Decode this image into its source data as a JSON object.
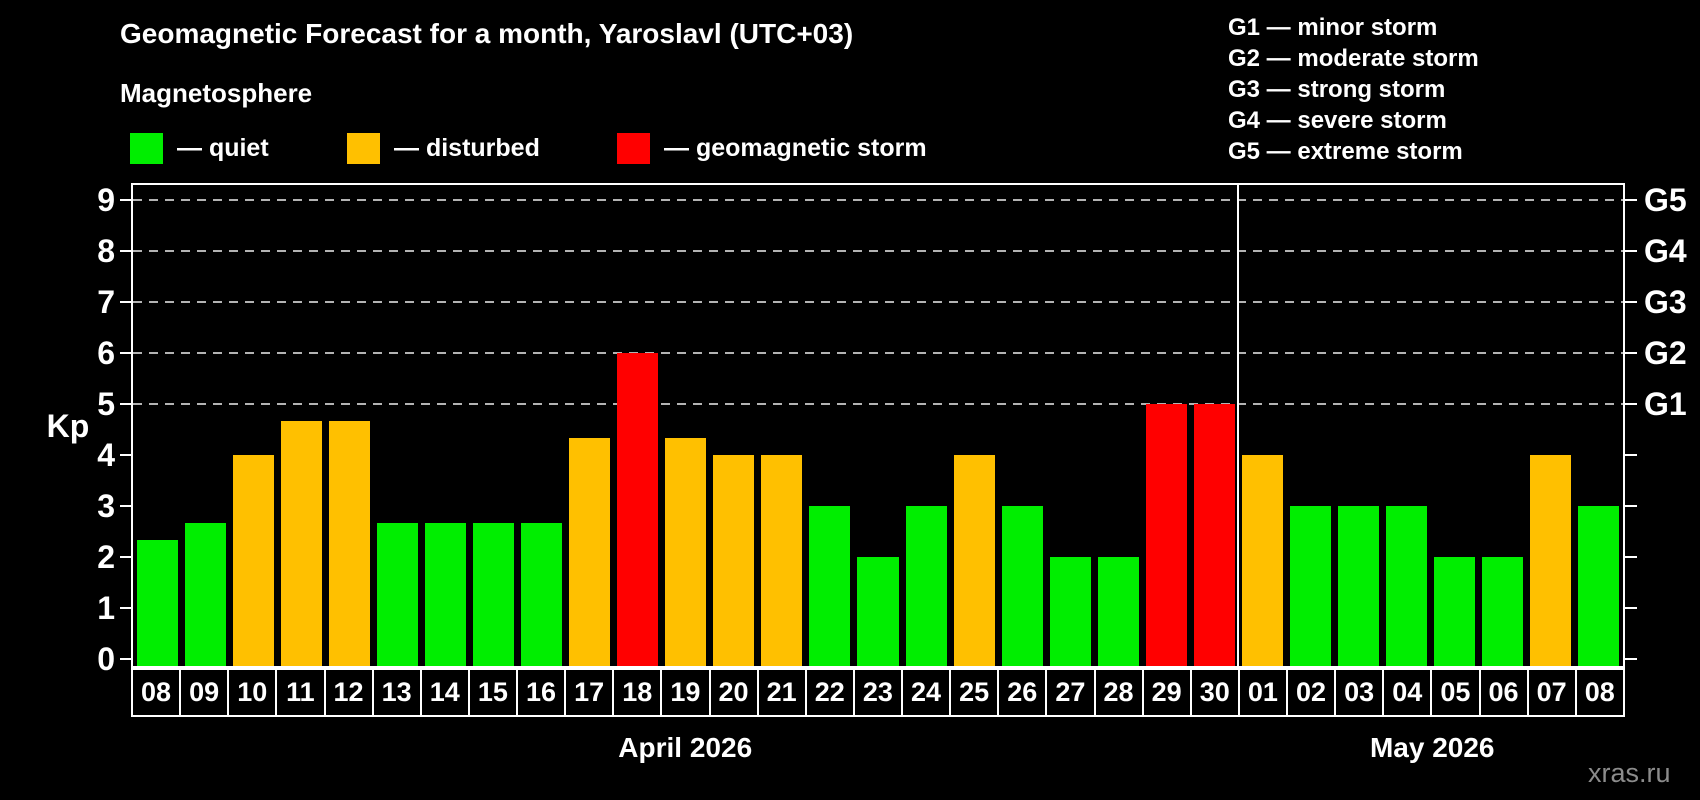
{
  "title": "Geomagnetic Forecast for a month, Yaroslavl (UTC+03)",
  "subtitle": "Magnetosphere",
  "legend": {
    "items": [
      {
        "label": "— quiet",
        "status": "quiet",
        "color": "#00ee00"
      },
      {
        "label": "— disturbed",
        "status": "disturbed",
        "color": "#ffc000"
      },
      {
        "label": "— geomagnetic storm",
        "status": "storm",
        "color": "#ff0000"
      }
    ]
  },
  "g_scale_legend": [
    "G1 — minor storm",
    "G2 — moderate storm",
    "G3 — strong storm",
    "G4 — severe storm",
    "G5 — extreme storm"
  ],
  "watermark": "xras.ru",
  "chart_data": {
    "type": "bar",
    "ylabel": "Kp",
    "ylim": [
      0,
      9.4
    ],
    "yticks": [
      0,
      1,
      2,
      3,
      4,
      5,
      6,
      7,
      8,
      9
    ],
    "gridlines_at": [
      5,
      6,
      7,
      8,
      9
    ],
    "grid": "dashed horizontal at storm levels only",
    "legend_position": "top-left",
    "right_axis_labels": [
      {
        "value": 5,
        "label": "G1"
      },
      {
        "value": 6,
        "label": "G2"
      },
      {
        "value": 7,
        "label": "G3"
      },
      {
        "value": 8,
        "label": "G4"
      },
      {
        "value": 9,
        "label": "G5"
      }
    ],
    "months": [
      {
        "label": "April 2026",
        "days": 23
      },
      {
        "label": "May 2026",
        "days": 8
      }
    ],
    "categories": [
      "08",
      "09",
      "10",
      "11",
      "12",
      "13",
      "14",
      "15",
      "16",
      "17",
      "18",
      "19",
      "20",
      "21",
      "22",
      "23",
      "24",
      "25",
      "26",
      "27",
      "28",
      "29",
      "30",
      "01",
      "02",
      "03",
      "04",
      "05",
      "06",
      "07",
      "08"
    ],
    "values": [
      2.33,
      2.67,
      4,
      4.67,
      4.67,
      2.67,
      2.67,
      2.67,
      2.67,
      4.33,
      6,
      4.33,
      4,
      4,
      3,
      2,
      3,
      4,
      3,
      2,
      2,
      5,
      5,
      4,
      3,
      3,
      3,
      2,
      2,
      4,
      3
    ],
    "statuses": [
      "quiet",
      "quiet",
      "disturbed",
      "disturbed",
      "disturbed",
      "quiet",
      "quiet",
      "quiet",
      "quiet",
      "disturbed",
      "storm",
      "disturbed",
      "disturbed",
      "disturbed",
      "quiet",
      "quiet",
      "quiet",
      "disturbed",
      "quiet",
      "quiet",
      "quiet",
      "storm",
      "storm",
      "disturbed",
      "quiet",
      "quiet",
      "quiet",
      "quiet",
      "quiet",
      "disturbed",
      "quiet"
    ],
    "colors": {
      "quiet": "#00ee00",
      "disturbed": "#ffc000",
      "storm": "#ff0000"
    }
  }
}
